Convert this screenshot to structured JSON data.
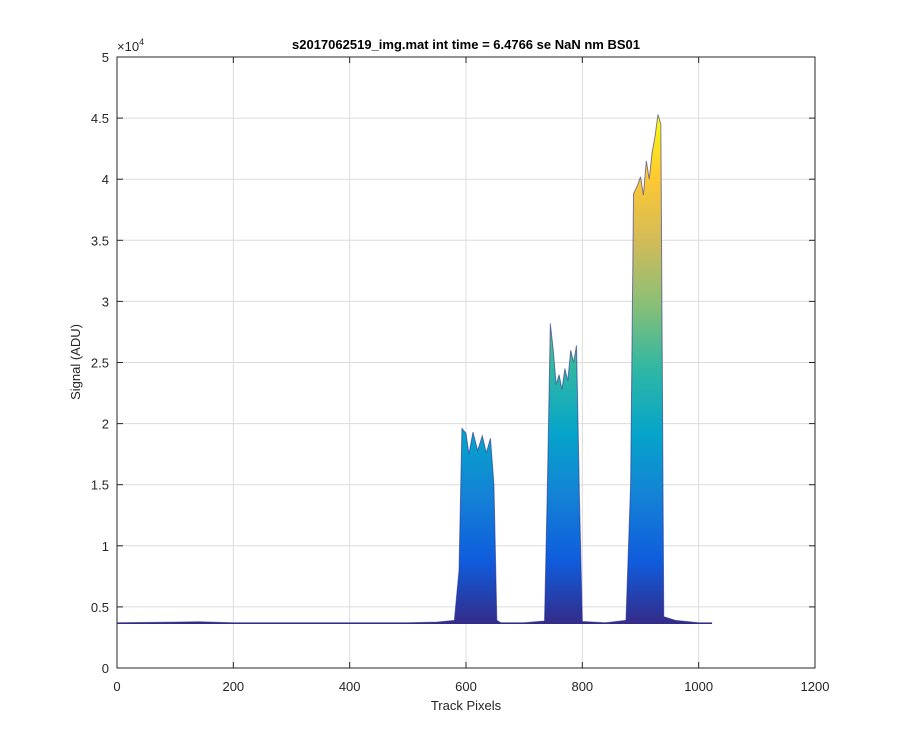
{
  "chart_data": {
    "type": "area",
    "title": "s2017062519_img.mat int time = 6.4766 se  NaN nm BS01",
    "xlabel": "Track Pixels",
    "ylabel": "Signal (ADU)",
    "xlim": [
      0,
      1200
    ],
    "ylim": [
      0,
      50000
    ],
    "x_ticks": [
      0,
      200,
      400,
      600,
      800,
      1000,
      1200
    ],
    "y_ticks": [
      0,
      5000,
      10000,
      15000,
      20000,
      25000,
      30000,
      35000,
      40000,
      45000,
      50000
    ],
    "y_tick_labels": [
      "0",
      "0.5",
      "1",
      "1.5",
      "2",
      "2.5",
      "3",
      "3.5",
      "4",
      "4.5",
      "5"
    ],
    "y_exponent": "×10^4",
    "grid": true,
    "colormap": [
      "#352a87",
      "#0f5cdd",
      "#1481d6",
      "#06a4ca",
      "#2eb7a4",
      "#87bf77",
      "#d1bb59",
      "#fec832",
      "#f9fb0e"
    ],
    "series": [
      {
        "x": [
          0,
          100,
          140,
          200,
          300,
          400,
          500,
          550,
          580,
          588,
          593,
          600,
          605,
          612,
          620,
          628,
          635,
          642,
          648,
          653,
          660,
          700,
          735,
          740,
          745,
          750,
          755,
          760,
          765,
          770,
          775,
          780,
          785,
          790,
          795,
          800,
          840,
          875,
          883,
          888,
          895,
          900,
          905,
          910,
          915,
          920,
          925,
          930,
          935,
          940,
          960,
          1000,
          1023
        ],
        "y": [
          3700,
          3750,
          3780,
          3700,
          3700,
          3700,
          3700,
          3750,
          3900,
          8000,
          19600,
          19200,
          17500,
          19300,
          17800,
          19000,
          17600,
          18800,
          15000,
          3900,
          3700,
          3700,
          3850,
          15000,
          28200,
          26000,
          23200,
          24000,
          22800,
          24500,
          23500,
          26000,
          25000,
          26400,
          14000,
          3800,
          3700,
          3900,
          15000,
          38800,
          39500,
          40200,
          38700,
          41500,
          40000,
          42200,
          43500,
          45300,
          44500,
          4200,
          3900,
          3700,
          3700
        ]
      }
    ]
  }
}
